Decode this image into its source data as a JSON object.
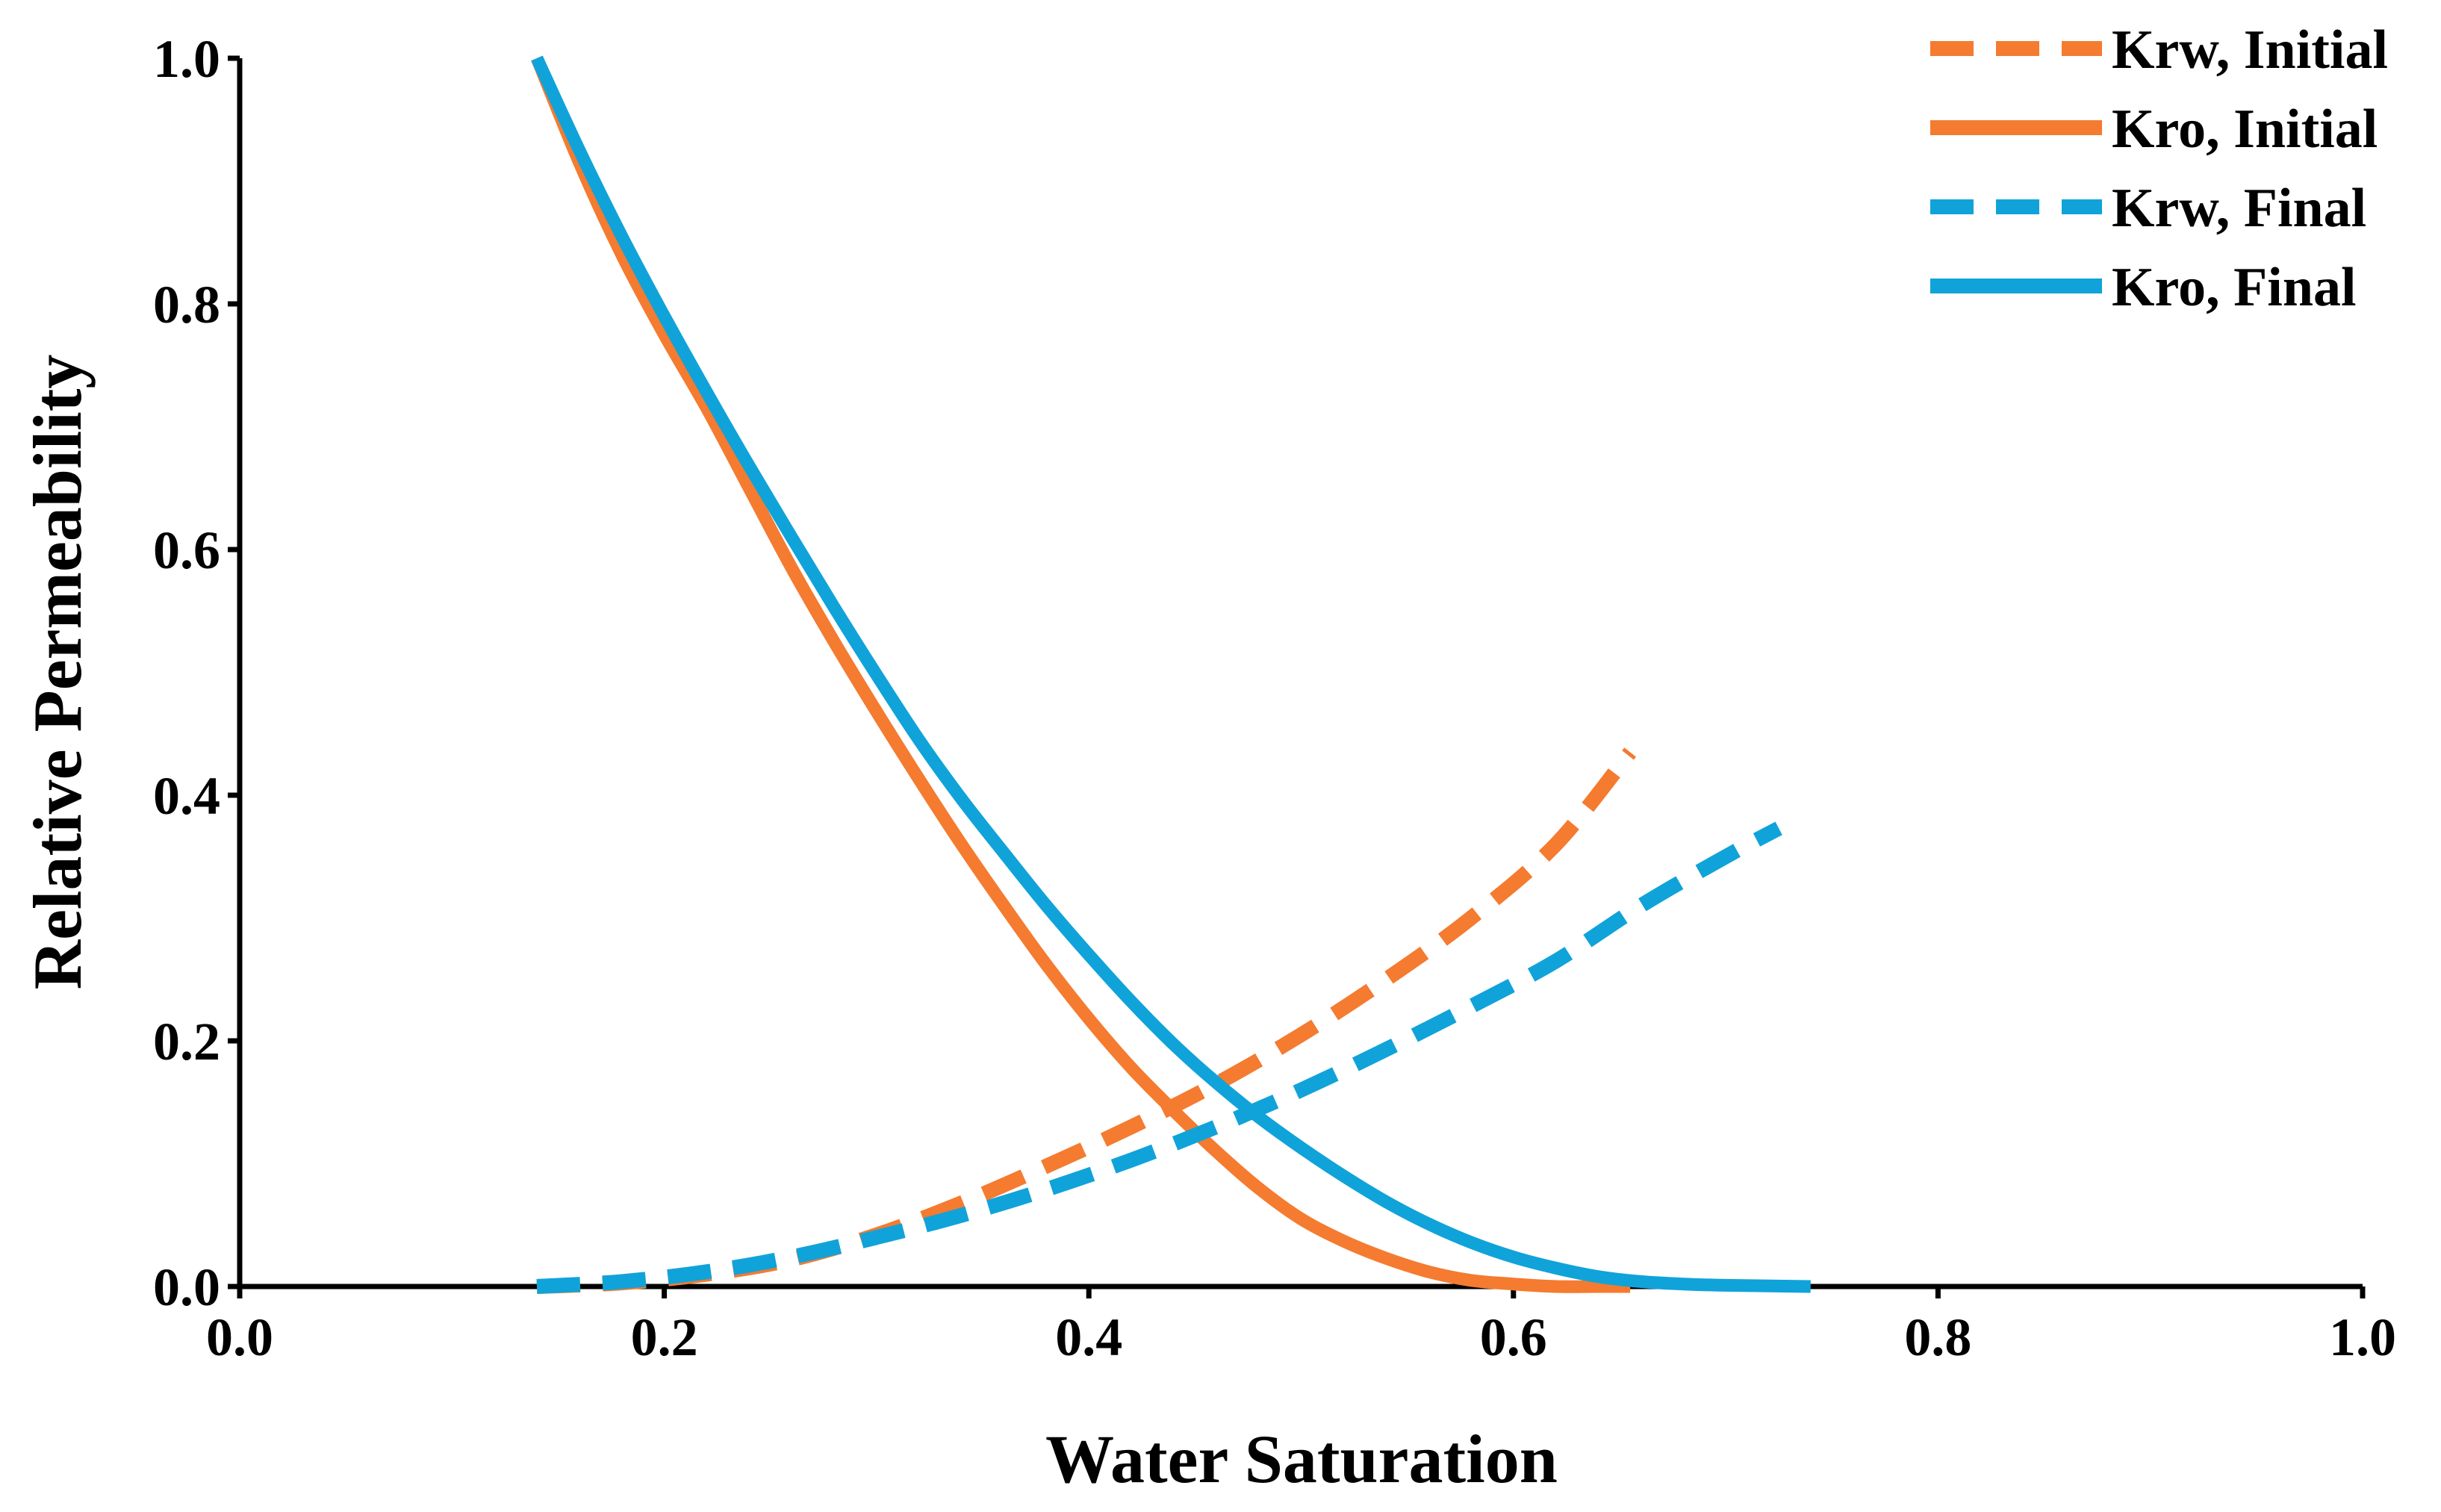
{
  "chart_data": {
    "type": "line",
    "title": "",
    "xlabel": "Water Saturation",
    "ylabel": "Relative Permeability",
    "xlim": [
      0.0,
      1.0
    ],
    "ylim": [
      0.0,
      1.0
    ],
    "x_ticks": [
      "0.0",
      "0.2",
      "0.4",
      "0.6",
      "0.8",
      "1.0"
    ],
    "y_ticks": [
      "0.0",
      "0.2",
      "0.4",
      "0.6",
      "0.8",
      "1.0"
    ],
    "grid": false,
    "legend_position": "top-right",
    "colors": {
      "initial": "#F47B30",
      "final": "#10A3D9"
    },
    "series": [
      {
        "name": "Krw, Initial",
        "style": "dashed",
        "color": "#F47B30",
        "x": [
          0.14,
          0.18,
          0.22,
          0.26,
          0.3,
          0.34,
          0.38,
          0.42,
          0.46,
          0.5,
          0.54,
          0.58,
          0.62,
          0.655
        ],
        "y": [
          0.0,
          0.003,
          0.01,
          0.022,
          0.042,
          0.068,
          0.098,
          0.13,
          0.165,
          0.205,
          0.25,
          0.3,
          0.36,
          0.435
        ]
      },
      {
        "name": "Kro, Initial",
        "style": "solid",
        "color": "#F47B30",
        "x": [
          0.14,
          0.16,
          0.18,
          0.2,
          0.22,
          0.24,
          0.26,
          0.28,
          0.3,
          0.32,
          0.34,
          0.36,
          0.38,
          0.4,
          0.42,
          0.44,
          0.46,
          0.48,
          0.5,
          0.52,
          0.54,
          0.56,
          0.58,
          0.6,
          0.62,
          0.64,
          0.655
        ],
        "y": [
          1.0,
          0.915,
          0.84,
          0.775,
          0.715,
          0.65,
          0.585,
          0.525,
          0.468,
          0.413,
          0.36,
          0.31,
          0.262,
          0.218,
          0.178,
          0.143,
          0.11,
          0.08,
          0.055,
          0.037,
          0.023,
          0.012,
          0.005,
          0.002,
          0.0,
          0.0,
          0.0
        ]
      },
      {
        "name": "Krw, Final",
        "style": "dashed",
        "color": "#10A3D9",
        "x": [
          0.14,
          0.18,
          0.22,
          0.26,
          0.3,
          0.34,
          0.38,
          0.42,
          0.46,
          0.5,
          0.54,
          0.58,
          0.62,
          0.66,
          0.7,
          0.725
        ],
        "y": [
          0.0,
          0.004,
          0.012,
          0.024,
          0.04,
          0.058,
          0.079,
          0.103,
          0.13,
          0.16,
          0.193,
          0.228,
          0.265,
          0.31,
          0.35,
          0.373
        ]
      },
      {
        "name": "Kro, Final",
        "style": "solid",
        "color": "#10A3D9",
        "x": [
          0.14,
          0.16,
          0.18,
          0.2,
          0.22,
          0.24,
          0.26,
          0.28,
          0.3,
          0.32,
          0.34,
          0.36,
          0.38,
          0.4,
          0.42,
          0.44,
          0.46,
          0.48,
          0.5,
          0.52,
          0.54,
          0.56,
          0.58,
          0.6,
          0.62,
          0.64,
          0.66,
          0.68,
          0.7,
          0.74
        ],
        "y": [
          1.0,
          0.925,
          0.855,
          0.79,
          0.728,
          0.668,
          0.61,
          0.553,
          0.498,
          0.445,
          0.397,
          0.353,
          0.31,
          0.27,
          0.232,
          0.197,
          0.166,
          0.138,
          0.113,
          0.09,
          0.069,
          0.051,
          0.036,
          0.024,
          0.015,
          0.008,
          0.004,
          0.002,
          0.001,
          0.0
        ]
      }
    ]
  }
}
